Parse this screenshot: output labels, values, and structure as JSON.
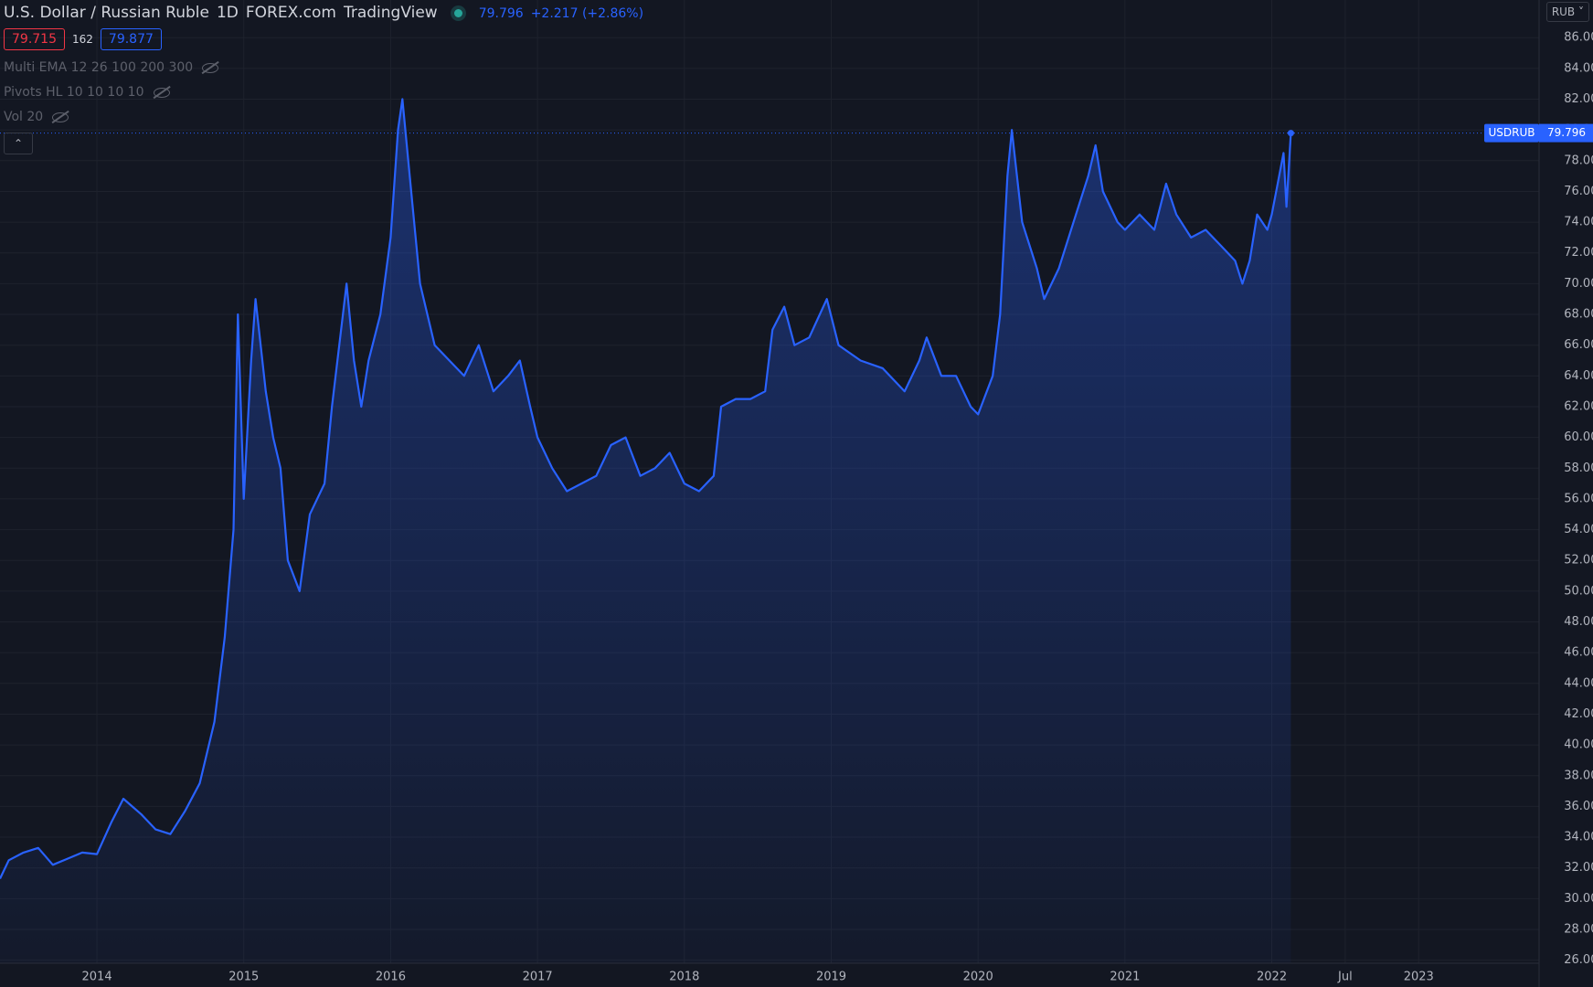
{
  "chart_data": {
    "type": "line",
    "header": {
      "title": "U.S. Dollar / Russian Ruble",
      "interval": "1D",
      "source": "FOREX.com",
      "platform": "TradingView",
      "change": "+2.217 (+2.86%)",
      "bid": "79.715",
      "spread": "162",
      "ask": "79.877",
      "indicators": [
        "Multi EMA 12 26 100 200 300",
        "Pivots HL 10 10 10 10",
        "Vol 20"
      ],
      "currency": "RUB"
    },
    "xlim": [
      2013.34,
      2023.82
    ],
    "xticks": [
      2014,
      2015,
      2016,
      2017,
      2018,
      2019,
      2020,
      2021,
      2022,
      {
        "value": 2022.5,
        "label": "Jul"
      },
      2023
    ],
    "ylim": [
      25.8,
      88.45
    ],
    "yticks": [
      {
        "value": 26,
        "label": "26.000"
      },
      {
        "value": 28,
        "label": "28.000"
      },
      {
        "value": 30,
        "label": "30.000"
      },
      {
        "value": 32,
        "label": "32.000"
      },
      {
        "value": 34,
        "label": "34.000"
      },
      {
        "value": 36,
        "label": "36.000"
      },
      {
        "value": 38,
        "label": "38.000"
      },
      {
        "value": 40,
        "label": "40.000"
      },
      {
        "value": 42,
        "label": "42.000"
      },
      {
        "value": 44,
        "label": "44.000"
      },
      {
        "value": 46,
        "label": "46.000"
      },
      {
        "value": 48,
        "label": "48.000"
      },
      {
        "value": 50,
        "label": "50.000"
      },
      {
        "value": 52,
        "label": "52.000"
      },
      {
        "value": 54,
        "label": "54.000"
      },
      {
        "value": 56,
        "label": "56.000"
      },
      {
        "value": 58,
        "label": "58.000"
      },
      {
        "value": 60,
        "label": "60.000"
      },
      {
        "value": 62,
        "label": "62.000"
      },
      {
        "value": 64,
        "label": "64.000"
      },
      {
        "value": 66,
        "label": "66.000"
      },
      {
        "value": 68,
        "label": "68.000"
      },
      {
        "value": 70,
        "label": "70.000"
      },
      {
        "value": 72,
        "label": "72.000"
      },
      {
        "value": 74,
        "label": "74.000"
      },
      {
        "value": 76,
        "label": "76.000"
      },
      {
        "value": 78,
        "label": "78.000"
      },
      {
        "value": 80,
        "label": "80.000"
      },
      {
        "value": 82,
        "label": "82.000"
      },
      {
        "value": 84,
        "label": "84.000"
      },
      {
        "value": 86,
        "label": "86.000"
      }
    ],
    "grid": true,
    "x": [
      2013.34,
      2013.4,
      2013.5,
      2013.6,
      2013.7,
      2013.8,
      2013.9,
      2014.0,
      2014.1,
      2014.18,
      2014.3,
      2014.4,
      2014.5,
      2014.6,
      2014.7,
      2014.8,
      2014.87,
      2014.93,
      2014.96,
      2015.0,
      2015.05,
      2015.08,
      2015.15,
      2015.2,
      2015.25,
      2015.3,
      2015.38,
      2015.45,
      2015.55,
      2015.6,
      2015.65,
      2015.7,
      2015.75,
      2015.8,
      2015.85,
      2015.93,
      2016.0,
      2016.05,
      2016.08,
      2016.12,
      2016.2,
      2016.3,
      2016.4,
      2016.5,
      2016.6,
      2016.7,
      2016.8,
      2016.88,
      2016.95,
      2017.0,
      2017.1,
      2017.2,
      2017.3,
      2017.4,
      2017.5,
      2017.6,
      2017.7,
      2017.8,
      2017.9,
      2018.0,
      2018.1,
      2018.2,
      2018.25,
      2018.35,
      2018.45,
      2018.55,
      2018.6,
      2018.68,
      2018.75,
      2018.85,
      2018.97,
      2019.05,
      2019.2,
      2019.35,
      2019.5,
      2019.6,
      2019.65,
      2019.75,
      2019.85,
      2019.95,
      2020.0,
      2020.1,
      2020.15,
      2020.2,
      2020.23,
      2020.3,
      2020.4,
      2020.45,
      2020.55,
      2020.65,
      2020.75,
      2020.8,
      2020.85,
      2020.95,
      2021.0,
      2021.1,
      2021.2,
      2021.28,
      2021.35,
      2021.45,
      2021.55,
      2021.65,
      2021.75,
      2021.8,
      2021.85,
      2021.9,
      2021.97,
      2022.0,
      2022.05,
      2022.08,
      2022.1,
      2022.13
    ],
    "series": [
      {
        "name": "USDRUB",
        "color": "#2962ff",
        "values": [
          31.3,
          32.5,
          33.0,
          33.3,
          32.2,
          32.6,
          33.0,
          32.9,
          35.0,
          36.5,
          35.5,
          34.5,
          34.2,
          35.7,
          37.5,
          41.5,
          47,
          54,
          68,
          56,
          65,
          69,
          63,
          60,
          58,
          52,
          50,
          55,
          57,
          62,
          66,
          70,
          65,
          62,
          65,
          68,
          73,
          80,
          82,
          78,
          70,
          66,
          65,
          64,
          66,
          63,
          64,
          65,
          62,
          60,
          58,
          56.5,
          57,
          57.5,
          59.5,
          60,
          57.5,
          58,
          59,
          57,
          56.5,
          57.5,
          62,
          62.5,
          62.5,
          63,
          67,
          68.5,
          66,
          66.5,
          69,
          66,
          65,
          64.5,
          63,
          65,
          66.5,
          64,
          64,
          62,
          61.5,
          64,
          68,
          77,
          80,
          74,
          71,
          69,
          71,
          74,
          77,
          79,
          76,
          74,
          73.5,
          74.5,
          73.5,
          76.5,
          74.5,
          73,
          73.5,
          72.5,
          71.5,
          70,
          71.5,
          74.5,
          73.5,
          74.5,
          77,
          78.5,
          75,
          79.796
        ]
      }
    ]
  }
}
